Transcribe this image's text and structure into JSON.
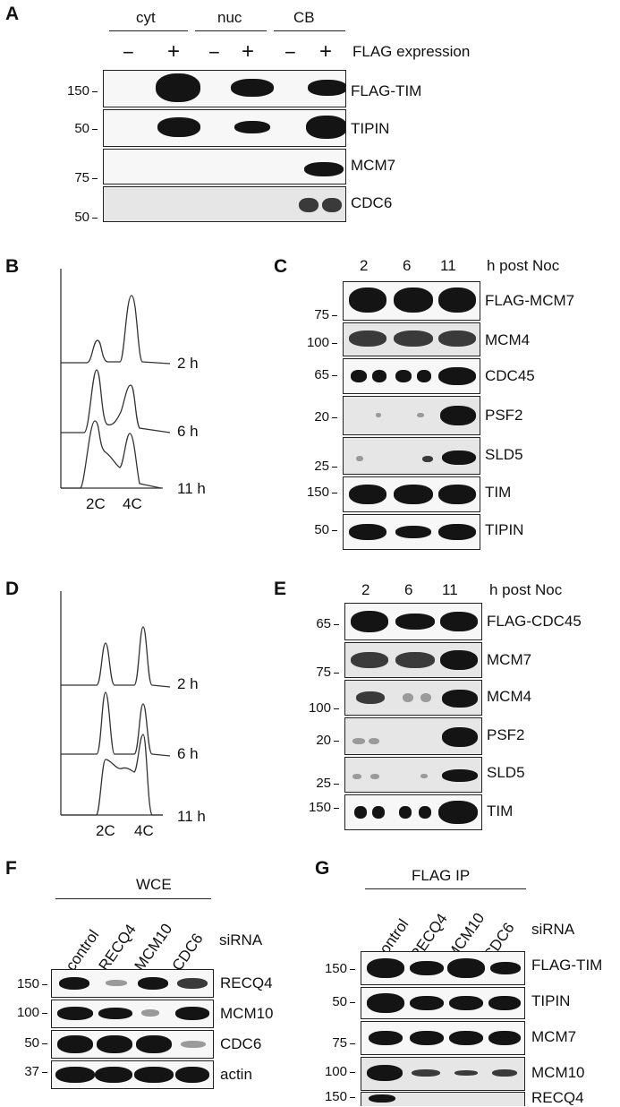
{
  "A": {
    "letter": "A",
    "groups": [
      "cyt",
      "nuc",
      "CB"
    ],
    "minus": "−",
    "plus": "+",
    "flag_label": "FLAG expression",
    "markers": [
      "150",
      "50",
      "75",
      "50"
    ],
    "proteins": [
      "FLAG-TIM",
      "TIPIN",
      "MCM7",
      "CDC6"
    ]
  },
  "B": {
    "letter": "B",
    "times": [
      "2 h",
      "6 h",
      "11 h"
    ],
    "xticks": [
      "2C",
      "4C"
    ]
  },
  "C": {
    "letter": "C",
    "times": [
      "2",
      "6",
      "11"
    ],
    "post": "h post Noc",
    "markers": [
      "75",
      "100",
      "65",
      "20",
      "25",
      "150",
      "50"
    ],
    "proteins": [
      "FLAG-MCM7",
      "MCM4",
      "CDC45",
      "PSF2",
      "SLD5",
      "TIM",
      "TIPIN"
    ]
  },
  "D": {
    "letter": "D",
    "times": [
      "2 h",
      "6 h",
      "11 h"
    ],
    "xticks": [
      "2C",
      "4C"
    ]
  },
  "E": {
    "letter": "E",
    "times": [
      "2",
      "6",
      "11"
    ],
    "post": "h post Noc",
    "markers": [
      "65",
      "75",
      "100",
      "20",
      "25",
      "150"
    ],
    "proteins": [
      "FLAG-CDC45",
      "MCM7",
      "MCM4",
      "PSF2",
      "SLD5",
      "TIM"
    ]
  },
  "F": {
    "letter": "F",
    "header": "WCE",
    "lanes": [
      "control",
      "RECQ4",
      "MCM10",
      "CDC6"
    ],
    "sirna": "siRNA",
    "markers": [
      "150",
      "100",
      "50",
      "37"
    ],
    "proteins": [
      "RECQ4",
      "MCM10",
      "CDC6",
      "actin"
    ]
  },
  "G": {
    "letter": "G",
    "header": "FLAG IP",
    "lanes": [
      "control",
      "RECQ4",
      "MCM10",
      "CDC6"
    ],
    "sirna": "siRNA",
    "markers": [
      "150",
      "50",
      "75",
      "100",
      "150"
    ],
    "proteins": [
      "FLAG-TIM",
      "TIPIN",
      "MCM7",
      "MCM10",
      "RECQ4"
    ]
  }
}
